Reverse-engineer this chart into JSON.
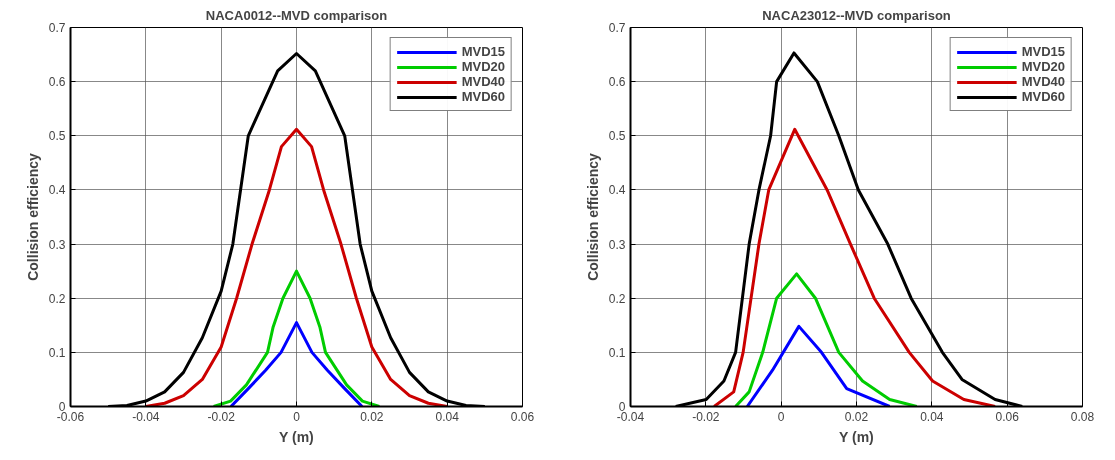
{
  "chart_data": [
    {
      "type": "line",
      "title": "NACA0012--MVD comparison",
      "xlabel": "Y (m)",
      "ylabel": "Collision efficiency",
      "xlim": [
        -0.06,
        0.06
      ],
      "ylim": [
        0,
        0.7
      ],
      "xticks": [
        -0.06,
        -0.04,
        -0.02,
        0,
        0.02,
        0.04,
        0.06
      ],
      "yticks": [
        0,
        0.1,
        0.2,
        0.3,
        0.4,
        0.5,
        0.6,
        0.7
      ],
      "grid": true,
      "legend": "top right",
      "series": [
        {
          "name": "MVD15",
          "color": "#0000ff",
          "x": [
            -0.0174,
            -0.0128,
            -0.0082,
            -0.0041,
            0,
            0.0041,
            0.0082,
            0.0128,
            0.0174
          ],
          "values": [
            0,
            0.033,
            0.067,
            0.1,
            0.155,
            0.1,
            0.067,
            0.033,
            0
          ]
        },
        {
          "name": "MVD20",
          "color": "#00cc00",
          "x": [
            -0.022,
            -0.0175,
            -0.0133,
            -0.0077,
            -0.0062,
            -0.0036,
            0,
            0.0036,
            0.0062,
            0.0077,
            0.0133,
            0.0175,
            0.022
          ],
          "values": [
            0,
            0.01,
            0.04,
            0.1,
            0.147,
            0.2,
            0.25,
            0.2,
            0.147,
            0.1,
            0.04,
            0.01,
            0
          ]
        },
        {
          "name": "MVD40",
          "color": "#cc0000",
          "x": [
            -0.04,
            -0.035,
            -0.03,
            -0.025,
            -0.02,
            -0.0159,
            -0.0118,
            -0.0072,
            -0.004,
            0,
            0.004,
            0.0072,
            0.0118,
            0.0159,
            0.02,
            0.025,
            0.03,
            0.035,
            0.04
          ],
          "values": [
            0,
            0.006,
            0.02,
            0.05,
            0.11,
            0.2,
            0.3,
            0.4,
            0.48,
            0.512,
            0.48,
            0.4,
            0.3,
            0.2,
            0.11,
            0.05,
            0.02,
            0.006,
            0
          ]
        },
        {
          "name": "MVD60",
          "color": "#000000",
          "x": [
            -0.05,
            -0.045,
            -0.04,
            -0.035,
            -0.03,
            -0.025,
            -0.02,
            -0.0169,
            -0.0128,
            -0.005,
            0,
            0.005,
            0.0128,
            0.0169,
            0.02,
            0.025,
            0.03,
            0.035,
            0.04,
            0.045,
            0.05
          ],
          "values": [
            0,
            0.002,
            0.01,
            0.027,
            0.063,
            0.127,
            0.213,
            0.3,
            0.5,
            0.62,
            0.652,
            0.62,
            0.5,
            0.3,
            0.213,
            0.127,
            0.063,
            0.027,
            0.01,
            0.002,
            0
          ]
        }
      ]
    },
    {
      "type": "line",
      "title": "NACA23012--MVD comparison",
      "xlabel": "Y (m)",
      "ylabel": "Collision efficiency",
      "xlim": [
        -0.04,
        0.08
      ],
      "ylim": [
        0,
        0.7
      ],
      "xticks": [
        -0.04,
        -0.02,
        0,
        0.02,
        0.04,
        0.06,
        0.08
      ],
      "yticks": [
        0,
        0.1,
        0.2,
        0.3,
        0.4,
        0.5,
        0.6,
        0.7
      ],
      "grid": true,
      "legend": "top right",
      "series": [
        {
          "name": "MVD15",
          "color": "#0000ff",
          "x": [
            -0.009,
            -0.0023,
            0.0047,
            0.0107,
            0.0174,
            0.0288
          ],
          "values": [
            0,
            0.067,
            0.148,
            0.1,
            0.033,
            0
          ]
        },
        {
          "name": "MVD20",
          "color": "#00cc00",
          "x": [
            -0.0121,
            -0.0085,
            -0.0049,
            -0.0012,
            0.0041,
            0.0091,
            0.0153,
            0.0216,
            0.0288,
            0.036
          ],
          "values": [
            0,
            0.027,
            0.1,
            0.2,
            0.245,
            0.2,
            0.1,
            0.047,
            0.013,
            0
          ]
        },
        {
          "name": "MVD40",
          "color": "#cc0000",
          "x": [
            -0.0178,
            -0.0126,
            -0.0101,
            -0.0059,
            -0.0033,
            0.0036,
            0.0122,
            0.0184,
            0.0247,
            0.034,
            0.0402,
            0.0485,
            0.0568
          ],
          "values": [
            0,
            0.027,
            0.1,
            0.3,
            0.4,
            0.512,
            0.4,
            0.3,
            0.2,
            0.1,
            0.047,
            0.013,
            0
          ]
        },
        {
          "name": "MVD60",
          "color": "#000000",
          "x": [
            -0.028,
            -0.0199,
            -0.0152,
            -0.0121,
            -0.0085,
            -0.0059,
            -0.0028,
            -0.0012,
            0.0034,
            0.0096,
            0.0153,
            0.0205,
            0.0283,
            0.0345,
            0.0428,
            0.048,
            0.0568,
            0.064
          ],
          "values": [
            0,
            0.013,
            0.047,
            0.1,
            0.3,
            0.4,
            0.5,
            0.6,
            0.653,
            0.6,
            0.5,
            0.4,
            0.3,
            0.2,
            0.1,
            0.05,
            0.013,
            0
          ]
        }
      ]
    }
  ]
}
